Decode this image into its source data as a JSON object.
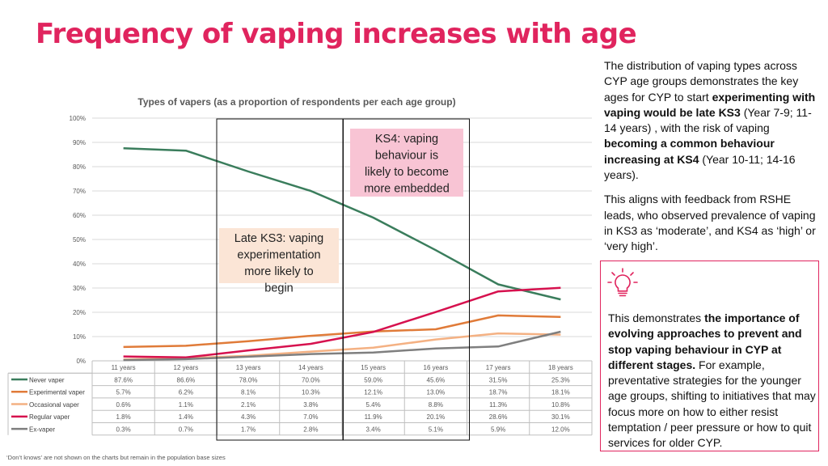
{
  "title": "Frequency of vaping increases with age",
  "side_text": {
    "p1_a": "The distribution of vaping types across CYP age groups demonstrates the key ages for CYP to start ",
    "p1_b": "experimenting with vaping would be late KS3",
    "p1_c": " (Year 7-9; 11-14 years) , with the risk of vaping ",
    "p1_d": "becoming a common behaviour increasing at KS4",
    "p1_e": " (Year 10-11; 14-16 years).",
    "p2": "This aligns with feedback from RSHE leads, who observed prevalence of vaping in KS3 as ‘moderate’, and KS4 as ‘high’ or ‘very high’."
  },
  "callout": {
    "icon": "lightbulb-icon",
    "a": "This demonstrates ",
    "b": "the importance of evolving approaches to prevent and stop vaping behaviour in CYP at different stages.",
    "c": " For example, preventative strategies for the younger age groups, shifting to initiatives that may focus more on how to either resist temptation / peer pressure or how to quit services for older CYP."
  },
  "annotations": {
    "ks3": "Late KS3: vaping experimentation more likely to begin",
    "ks4": "KS4: vaping behaviour is likely to become more embedded"
  },
  "footnote": "‘Don’t knows’ are not shown on the charts but remain in the population base sizes",
  "colors": {
    "accent": "#e0245e",
    "ks3_box": "#fbe5d6",
    "ks4_box": "#f8c4d4"
  },
  "chart_data": {
    "type": "line",
    "title": "Types of vapers (as a proportion of respondents per each age group)",
    "categories": [
      "11 years",
      "12 years",
      "13 years",
      "14 years",
      "15 years",
      "16 years",
      "17 years",
      "18 years"
    ],
    "ylim": [
      0,
      100
    ],
    "yticks": [
      "0%",
      "10%",
      "20%",
      "30%",
      "40%",
      "50%",
      "60%",
      "70%",
      "80%",
      "90%",
      "100%"
    ],
    "series": [
      {
        "name": "Never vaper",
        "color": "#3a7d5c",
        "values": [
          87.6,
          86.6,
          78.0,
          70.0,
          59.0,
          45.6,
          31.5,
          25.3
        ],
        "labels": [
          "87.6%",
          "86.6%",
          "78.0%",
          "70.0%",
          "59.0%",
          "45.6%",
          "31.5%",
          "25.3%"
        ]
      },
      {
        "name": "Experimental vaper",
        "color": "#e07b39",
        "values": [
          5.7,
          6.2,
          8.1,
          10.3,
          12.1,
          13.0,
          18.7,
          18.1
        ],
        "labels": [
          "5.7%",
          "6.2%",
          "8.1%",
          "10.3%",
          "12.1%",
          "13.0%",
          "18.7%",
          "18.1%"
        ]
      },
      {
        "name": "Occasional vaper",
        "color": "#f4b183",
        "values": [
          0.6,
          1.1,
          2.1,
          3.8,
          5.4,
          8.8,
          11.3,
          10.8
        ],
        "labels": [
          "0.6%",
          "1.1%",
          "2.1%",
          "3.8%",
          "5.4%",
          "8.8%",
          "11.3%",
          "10.8%"
        ]
      },
      {
        "name": "Regular vaper",
        "color": "#d6114e",
        "values": [
          1.8,
          1.4,
          4.3,
          7.0,
          11.9,
          20.1,
          28.6,
          30.1
        ],
        "labels": [
          "1.8%",
          "1.4%",
          "4.3%",
          "7.0%",
          "11.9%",
          "20.1%",
          "28.6%",
          "30.1%"
        ]
      },
      {
        "name": "Ex-vaper",
        "color": "#7f7f7f",
        "values": [
          0.3,
          0.7,
          1.7,
          2.8,
          3.4,
          5.1,
          5.9,
          12.0
        ],
        "labels": [
          "0.3%",
          "0.7%",
          "1.7%",
          "2.8%",
          "3.4%",
          "5.1%",
          "5.9%",
          "12.0%"
        ]
      }
    ]
  }
}
